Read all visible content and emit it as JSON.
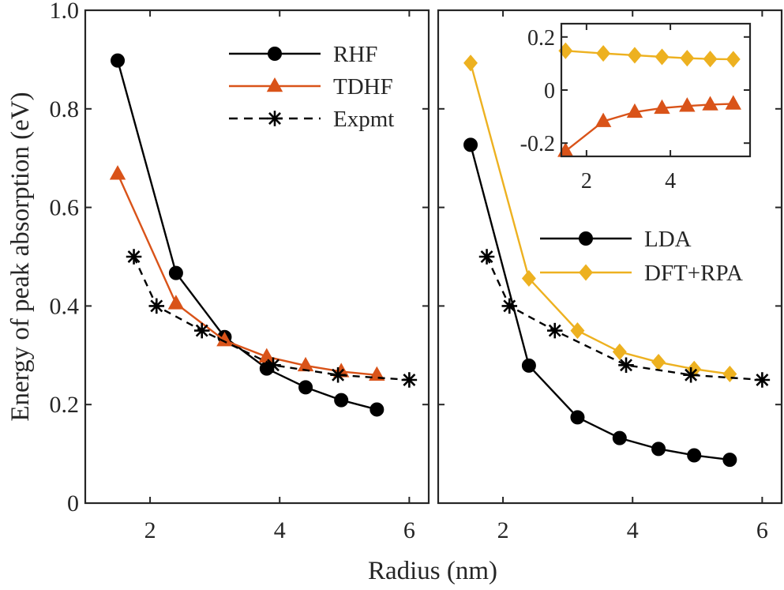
{
  "chart_data": [
    {
      "type": "line",
      "panel": "left",
      "xlabel": "Radius (nm)",
      "ylabel": "Energy of peak absorption (eV)",
      "xlim": [
        1.0,
        6.3
      ],
      "ylim": [
        0,
        1.0
      ],
      "xticks": [
        2,
        4,
        6
      ],
      "yticks": [
        0,
        0.2,
        0.4,
        0.6,
        0.8,
        1.0
      ],
      "xtick_labels": [
        "2",
        "4",
        "6"
      ],
      "ytick_labels": [
        "0",
        "0.2",
        "0.4",
        "0.6",
        "0.8",
        "1.0"
      ],
      "legend_position": "top-right",
      "series": [
        {
          "name": "RHF",
          "marker": "circle",
          "color": "#000000",
          "dash": "solid",
          "x": [
            1.5,
            2.4,
            3.15,
            3.8,
            4.4,
            4.95,
            5.5
          ],
          "y": [
            0.898,
            0.467,
            0.337,
            0.273,
            0.235,
            0.209,
            0.19
          ]
        },
        {
          "name": "TDHF",
          "marker": "triangle",
          "color": "#d95319",
          "dash": "solid",
          "x": [
            1.5,
            2.4,
            3.15,
            3.8,
            4.4,
            4.95,
            5.5
          ],
          "y": [
            0.668,
            0.405,
            0.33,
            0.297,
            0.279,
            0.267,
            0.26
          ]
        },
        {
          "name": "Expmt",
          "marker": "asterisk",
          "color": "#000000",
          "dash": "dashed",
          "x": [
            1.75,
            2.1,
            2.8,
            3.9,
            4.9,
            6.0
          ],
          "y": [
            0.5,
            0.4,
            0.35,
            0.28,
            0.26,
            0.25
          ]
        }
      ]
    },
    {
      "type": "line",
      "panel": "right",
      "xlabel": "",
      "ylabel": "",
      "xlim": [
        1.0,
        6.3
      ],
      "ylim": [
        0,
        1.0
      ],
      "xticks": [
        2,
        4,
        6
      ],
      "xtick_labels": [
        "2",
        "4",
        "6"
      ],
      "legend_position": "center-right",
      "series": [
        {
          "name": "LDA",
          "marker": "circle",
          "color": "#000000",
          "dash": "solid",
          "x": [
            1.5,
            2.4,
            3.15,
            3.8,
            4.4,
            4.95,
            5.5
          ],
          "y": [
            0.727,
            0.279,
            0.174,
            0.132,
            0.11,
            0.097,
            0.088
          ]
        },
        {
          "name": "DFT+RPA",
          "marker": "diamond",
          "color": "#edb120",
          "dash": "solid",
          "x": [
            1.5,
            2.4,
            3.15,
            3.8,
            4.4,
            4.95,
            5.5
          ],
          "y": [
            0.893,
            0.456,
            0.35,
            0.307,
            0.286,
            0.272,
            0.262
          ]
        },
        {
          "name": "",
          "marker": "asterisk",
          "color": "#000000",
          "dash": "dashed",
          "x": [
            1.75,
            2.1,
            2.8,
            3.9,
            4.9,
            6.0
          ],
          "y": [
            0.5,
            0.4,
            0.35,
            0.28,
            0.26,
            0.25
          ]
        }
      ]
    },
    {
      "type": "line",
      "panel": "inset",
      "xlim": [
        1.4,
        5.9
      ],
      "ylim": [
        -0.25,
        0.25
      ],
      "xticks": [
        2,
        4
      ],
      "yticks": [
        -0.2,
        0,
        0.2
      ],
      "xtick_labels": [
        "2",
        "4"
      ],
      "ytick_labels": [
        "-0.2",
        "0",
        "0.2"
      ],
      "series": [
        {
          "name": "",
          "marker": "diamond",
          "color": "#edb120",
          "dash": "solid",
          "x": [
            1.5,
            2.4,
            3.15,
            3.8,
            4.4,
            4.95,
            5.5
          ],
          "y": [
            0.148,
            0.138,
            0.131,
            0.125,
            0.12,
            0.117,
            0.116
          ]
        },
        {
          "name": "",
          "marker": "triangle",
          "color": "#d95319",
          "dash": "solid",
          "x": [
            1.5,
            2.4,
            3.15,
            3.8,
            4.4,
            4.95,
            5.5
          ],
          "y": [
            -0.23,
            -0.118,
            -0.083,
            -0.068,
            -0.06,
            -0.055,
            -0.052
          ]
        }
      ]
    }
  ]
}
